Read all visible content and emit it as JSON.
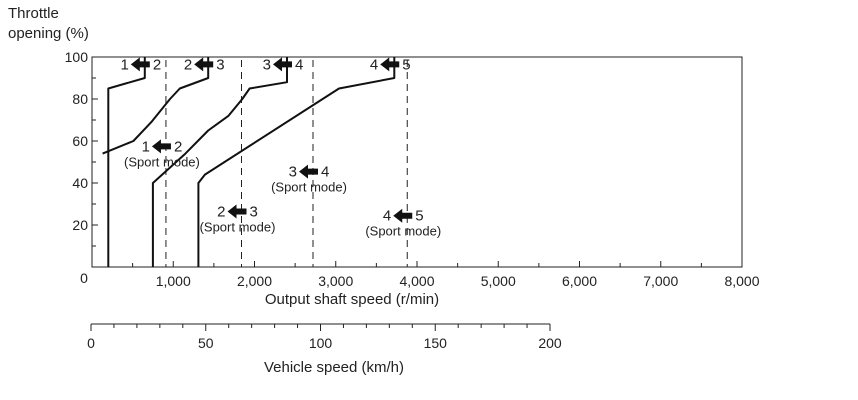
{
  "chart_data": {
    "type": "line",
    "ylabel": "Throttle\nopening (%)",
    "xlabel": "Output shaft speed (r/min)",
    "origin_label": "0",
    "xlim": [
      0,
      8000
    ],
    "ylim": [
      0,
      100
    ],
    "x_ticks": [
      1000,
      2000,
      3000,
      4000,
      5000,
      6000,
      7000,
      8000
    ],
    "x_tick_labels": [
      "1,000",
      "2,000",
      "3,000",
      "4,000",
      "5,000",
      "6,000",
      "7,000",
      "8,000"
    ],
    "y_ticks": [
      20,
      40,
      60,
      80,
      100
    ],
    "y_tick_labels": [
      "20",
      "40",
      "60",
      "80",
      "100"
    ],
    "series": [
      {
        "points": [
          [
            200,
            0
          ],
          [
            200,
            85
          ],
          [
            650,
            90
          ],
          [
            650,
            100
          ]
        ]
      },
      {
        "points": [
          [
            130,
            54
          ],
          [
            510,
            60
          ],
          [
            730,
            69
          ],
          [
            960,
            80
          ],
          [
            1080,
            85
          ],
          [
            1430,
            90
          ],
          [
            1430,
            100
          ]
        ]
      },
      {
        "points": [
          [
            750,
            0
          ],
          [
            750,
            40
          ],
          [
            1150,
            54
          ],
          [
            1430,
            65
          ],
          [
            1680,
            72
          ],
          [
            1850,
            80
          ],
          [
            1940,
            85
          ],
          [
            2400,
            88
          ],
          [
            2400,
            100
          ]
        ]
      },
      {
        "points": [
          [
            1310,
            0
          ],
          [
            1310,
            40
          ],
          [
            1390,
            44
          ],
          [
            3040,
            85
          ],
          [
            3720,
            90
          ],
          [
            3720,
            100
          ]
        ]
      }
    ],
    "dashed_lines": [
      {
        "x": 910
      },
      {
        "x": 1840
      },
      {
        "x": 2720
      },
      {
        "x": 3880
      }
    ],
    "upshift_labels": [
      {
        "from": "1",
        "to": "2",
        "x": 650,
        "y": 96
      },
      {
        "from": "2",
        "to": "3",
        "x": 1430,
        "y": 96
      },
      {
        "from": "3",
        "to": "4",
        "x": 2400,
        "y": 96
      },
      {
        "from": "4",
        "to": "5",
        "x": 3720,
        "y": 96
      }
    ],
    "sport_labels": [
      {
        "from": "1",
        "to": "2",
        "mode": "(Sport mode)",
        "x": 910,
        "y": 56
      },
      {
        "from": "2",
        "to": "3",
        "mode": "(Sport mode)",
        "x": 1840,
        "y": 25
      },
      {
        "from": "3",
        "to": "4",
        "mode": "(Sport mode)",
        "x": 2720,
        "y": 44
      },
      {
        "from": "4",
        "to": "5",
        "mode": "(Sport mode)",
        "x": 3880,
        "y": 23
      }
    ],
    "vehicle_axis": {
      "label": "Vehicle speed (km/h)",
      "range": [
        0,
        200
      ],
      "ticks": [
        0,
        50,
        100,
        150,
        200
      ],
      "minor_step": 10
    },
    "grid": false
  }
}
